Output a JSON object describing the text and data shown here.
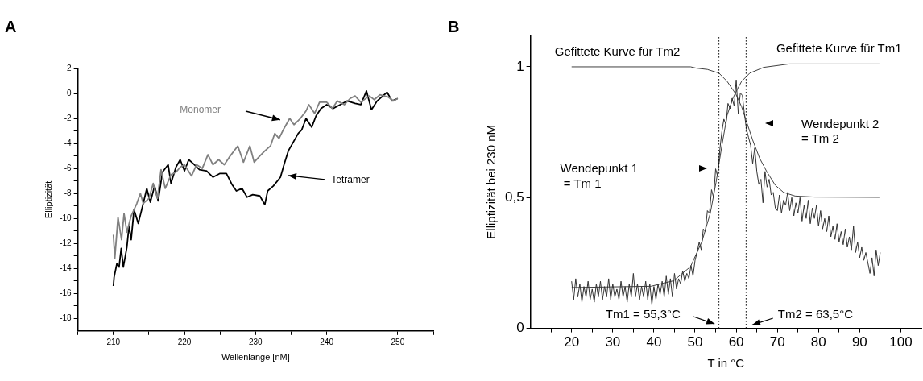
{
  "chart_data": [
    {
      "type": "line",
      "title": "A",
      "xlabel": "Wellenlänge [nM]",
      "ylabel": "Elliptizität",
      "xlim": [
        205,
        255
      ],
      "ylim": [
        -19,
        2
      ],
      "xticks": [
        {
          "value": 205,
          "label": null
        },
        210,
        {
          "value": 215,
          "label": null
        },
        220,
        {
          "value": 225,
          "label": null
        },
        230,
        {
          "value": 235,
          "label": null
        },
        240,
        {
          "value": 245,
          "label": null
        },
        250,
        {
          "value": 255,
          "label": null
        }
      ],
      "yticks": [
        -18,
        {
          "value": -17,
          "label": null
        },
        -16,
        {
          "value": -15,
          "label": null
        },
        -14,
        {
          "value": -13,
          "label": null
        },
        -12,
        {
          "value": -11,
          "label": null
        },
        -10,
        {
          "value": -9,
          "label": null
        },
        -8,
        {
          "value": -7,
          "label": null
        },
        -6,
        {
          "value": -5,
          "label": null
        },
        -4,
        {
          "value": -3,
          "label": null
        },
        -2,
        {
          "value": -1,
          "label": null
        },
        0,
        {
          "value": 1,
          "label": null
        },
        2
      ],
      "series": [
        {
          "name": "Monomer",
          "color": "#808080",
          "x": [
            210,
            210.2,
            210.65,
            211.15,
            211.5,
            211.9,
            212.5,
            213.3,
            213.8,
            214.2,
            215,
            215.6,
            216.2,
            216.7,
            217.3,
            218.1,
            218.8,
            219.4,
            220,
            221,
            221.7,
            222.5,
            223.3,
            224,
            224.8,
            225.6,
            226.3,
            227.5,
            228.3,
            229.2,
            229.8,
            230.6,
            231.3,
            232.1,
            232.7,
            233.3,
            234,
            234.8,
            235.4,
            236.3,
            237.1,
            237.5,
            238.3,
            239,
            240,
            240.8,
            241.5,
            242.5,
            243.3,
            244,
            244.8,
            246,
            246.7,
            247.5,
            248.7,
            249.4,
            250
          ],
          "values": [
            -11.3,
            -13.2,
            -9.9,
            -11.7,
            -9.6,
            -11.1,
            -9.8,
            -8.8,
            -8,
            -8.8,
            -8.4,
            -7.2,
            -8.4,
            -6.1,
            -7.6,
            -6.5,
            -6.3,
            -5.9,
            -5.7,
            -6.6,
            -5.7,
            -6,
            -4.9,
            -5.7,
            -5.3,
            -5.7,
            -5.1,
            -4.2,
            -5.5,
            -4.2,
            -5.5,
            -5,
            -4.6,
            -4.2,
            -3.2,
            -3.6,
            -2.8,
            -2,
            -2.5,
            -2,
            -1.4,
            -0.9,
            -1.6,
            -0.7,
            -0.7,
            -1.2,
            -0.6,
            -0.9,
            -0.4,
            -0.2,
            -0.7,
            -0.2,
            -0.5,
            -0.1,
            -0.3,
            -0.6,
            -0.4
          ]
        },
        {
          "name": "Tetramer",
          "color": "#000000",
          "x": [
            210,
            210.1,
            210.5,
            210.8,
            211.1,
            211.4,
            211.9,
            212.2,
            212.5,
            212.9,
            213.5,
            214.2,
            214.7,
            215.2,
            215.8,
            216.3,
            216.9,
            217.7,
            218.1,
            218.8,
            219.4,
            220,
            220.6,
            221.2,
            222.1,
            223.1,
            224,
            225,
            225.9,
            226.7,
            227.3,
            228.1,
            228.8,
            229.6,
            230.6,
            231.3,
            231.7,
            232.5,
            233.5,
            234,
            234.6,
            235.2,
            236,
            236.5,
            237.1,
            237.9,
            238.5,
            239.2,
            240,
            240.9,
            241.9,
            242.9,
            244,
            244.8,
            245.6,
            246.3,
            247.1,
            248.5,
            249.2,
            250
          ],
          "values": [
            -15.4,
            -14.7,
            -13.6,
            -13.9,
            -12.4,
            -13.9,
            -12.3,
            -10.6,
            -11.7,
            -9.3,
            -10.4,
            -8.8,
            -7.6,
            -8.7,
            -7.4,
            -8.6,
            -6.3,
            -5.7,
            -7.2,
            -5.9,
            -5.3,
            -6.2,
            -5.3,
            -5.6,
            -6.1,
            -6.2,
            -6.7,
            -6.4,
            -6.4,
            -7.3,
            -7.8,
            -7.6,
            -8.3,
            -8.1,
            -8.2,
            -8.9,
            -7.8,
            -7.4,
            -6.7,
            -5.7,
            -4.6,
            -4,
            -3.2,
            -2.9,
            -2,
            -2.7,
            -1.8,
            -1.2,
            -0.9,
            -1.2,
            -0.9,
            -0.6,
            -0.8,
            -0.9,
            0.2,
            -1.3,
            -0.6,
            0.1,
            -0.6,
            -0.4
          ]
        }
      ]
    },
    {
      "type": "line",
      "title": "B",
      "xlabel": "T in °C",
      "ylabel": "Elliptizität bei 230 nM",
      "xlim": [
        10,
        105
      ],
      "ylim": [
        0,
        1.12
      ],
      "xticks": [
        {
          "value": 15,
          "label": null
        },
        20,
        {
          "value": 25,
          "label": null
        },
        30,
        {
          "value": 35,
          "label": null
        },
        40,
        {
          "value": 45,
          "label": null
        },
        50,
        {
          "value": 55,
          "label": null
        },
        60,
        {
          "value": 65,
          "label": null
        },
        70,
        {
          "value": 75,
          "label": null
        },
        80,
        {
          "value": 85,
          "label": null
        },
        90,
        {
          "value": 95,
          "label": null
        },
        100
      ],
      "yticks": [
        0,
        {
          "value": 0.5,
          "label": "0,5"
        },
        1
      ],
      "series": [
        {
          "color": "#333333",
          "x": [
            20,
            20.5,
            21,
            21.5,
            22,
            22.5,
            23,
            23.5,
            24,
            24.5,
            25,
            25.5,
            26,
            26.5,
            27,
            27.5,
            28,
            28.5,
            29,
            29.5,
            30,
            30.5,
            31,
            31.5,
            32,
            32.5,
            33,
            33.5,
            34,
            34.5,
            35,
            35.5,
            36,
            36.5,
            37,
            37.5,
            38,
            38.5,
            39,
            39.5,
            40,
            40.5,
            41,
            41.5,
            42,
            42.5,
            43,
            43.5,
            44,
            44.5,
            45,
            45.5,
            46,
            46.5,
            47,
            47.5,
            48,
            48.5,
            49,
            49.5,
            50,
            50.5,
            51,
            51.5,
            52,
            52.5,
            53,
            53.5,
            54,
            54.5,
            55,
            55.5,
            56,
            56.5,
            57,
            57.5,
            58,
            58.5,
            59,
            59.5,
            60,
            60.5,
            61,
            61.5,
            62,
            62.5,
            63,
            63.5,
            64,
            64.5,
            65,
            65.5,
            66,
            66.5,
            67,
            67.5,
            68,
            68.5,
            69,
            69.5,
            70,
            70.5,
            71,
            71.5,
            72,
            72.5,
            73,
            73.5,
            74,
            74.5,
            75,
            75.5,
            76,
            76.5,
            77,
            77.5,
            78,
            78.5,
            79,
            79.5,
            80,
            80.5,
            81,
            81.5,
            82,
            82.5,
            83,
            83.5,
            84,
            84.5,
            85,
            85.5,
            86,
            86.5,
            87,
            87.5,
            88,
            88.5,
            89,
            89.5,
            90,
            90.5,
            91,
            91.5,
            92,
            92.5,
            93,
            93.5,
            94,
            94.5,
            95
          ],
          "values": [
            0.18,
            0.11,
            0.19,
            0.12,
            0.17,
            0.1,
            0.16,
            0.12,
            0.18,
            0.11,
            0.15,
            0.1,
            0.17,
            0.12,
            0.18,
            0.11,
            0.16,
            0.12,
            0.19,
            0.11,
            0.17,
            0.12,
            0.15,
            0.11,
            0.18,
            0.12,
            0.16,
            0.1,
            0.17,
            0.12,
            0.21,
            0.12,
            0.17,
            0.11,
            0.16,
            0.12,
            0.18,
            0.11,
            0.17,
            0.09,
            0.16,
            0.11,
            0.17,
            0.13,
            0.18,
            0.12,
            0.2,
            0.13,
            0.19,
            0.12,
            0.21,
            0.15,
            0.19,
            0.17,
            0.22,
            0.18,
            0.21,
            0.19,
            0.24,
            0.2,
            0.26,
            0.29,
            0.33,
            0.3,
            0.38,
            0.37,
            0.45,
            0.44,
            0.53,
            0.5,
            0.61,
            0.58,
            0.68,
            0.75,
            0.8,
            0.78,
            0.86,
            0.84,
            0.88,
            0.85,
            0.95,
            0.82,
            0.9,
            0.89,
            0.82,
            0.76,
            0.73,
            0.7,
            0.63,
            0.69,
            0.6,
            0.55,
            0.57,
            0.48,
            0.6,
            0.54,
            0.57,
            0.51,
            0.52,
            0.46,
            0.45,
            0.51,
            0.44,
            0.49,
            0.47,
            0.52,
            0.45,
            0.5,
            0.43,
            0.48,
            0.44,
            0.5,
            0.41,
            0.47,
            0.42,
            0.49,
            0.4,
            0.46,
            0.42,
            0.47,
            0.39,
            0.45,
            0.38,
            0.42,
            0.37,
            0.43,
            0.35,
            0.39,
            0.34,
            0.4,
            0.33,
            0.37,
            0.32,
            0.38,
            0.31,
            0.35,
            0.3,
            0.39,
            0.29,
            0.33,
            0.27,
            0.31,
            0.26,
            0.29,
            0.25,
            0.21,
            0.27,
            0.2,
            0.3,
            0.24,
            0.29
          ]
        },
        {
          "name": "Gefittete Kurve für Tm2",
          "color": "#404040",
          "x": [
            20,
            48.9,
            50.3,
            53,
            55.8,
            57.8,
            59.2,
            59.9,
            61.3,
            62.3,
            64,
            65.7,
            67.4,
            69.5,
            71.5,
            74.3,
            79.1,
            94.8
          ],
          "values": [
            1,
            1,
            0.995,
            0.99,
            0.976,
            0.944,
            0.912,
            0.896,
            0.848,
            0.8,
            0.72,
            0.65,
            0.6,
            0.547,
            0.52,
            0.506,
            0.502,
            0.501
          ]
        },
        {
          "name": "Gefittete Kurve für Tm1",
          "color": "#404040",
          "x": [
            20,
            39.3,
            44.8,
            48.9,
            51.7,
            53.7,
            55.1,
            56.5,
            57.8,
            59.2,
            60.2,
            61.3,
            63.3,
            66.7,
            72.9,
            94.8
          ],
          "values": [
            0.156,
            0.161,
            0.182,
            0.236,
            0.333,
            0.44,
            0.558,
            0.697,
            0.815,
            0.88,
            0.912,
            0.944,
            0.976,
            0.998,
            1.011,
            1.011
          ]
        }
      ],
      "ref_lines": [
        {
          "axis": "x",
          "value": 55.8,
          "line_style": "dotted",
          "color": "#000000"
        },
        {
          "axis": "x",
          "value": 62.4,
          "line_style": "dotted",
          "color": "#000000"
        }
      ],
      "annotations": [
        "Wendepunkt 1\n = Tm 1",
        "Wendepunkt 2\n= Tm 2",
        "Tm1 = 55,3°C",
        "Tm2 = 63,5°C"
      ]
    }
  ]
}
